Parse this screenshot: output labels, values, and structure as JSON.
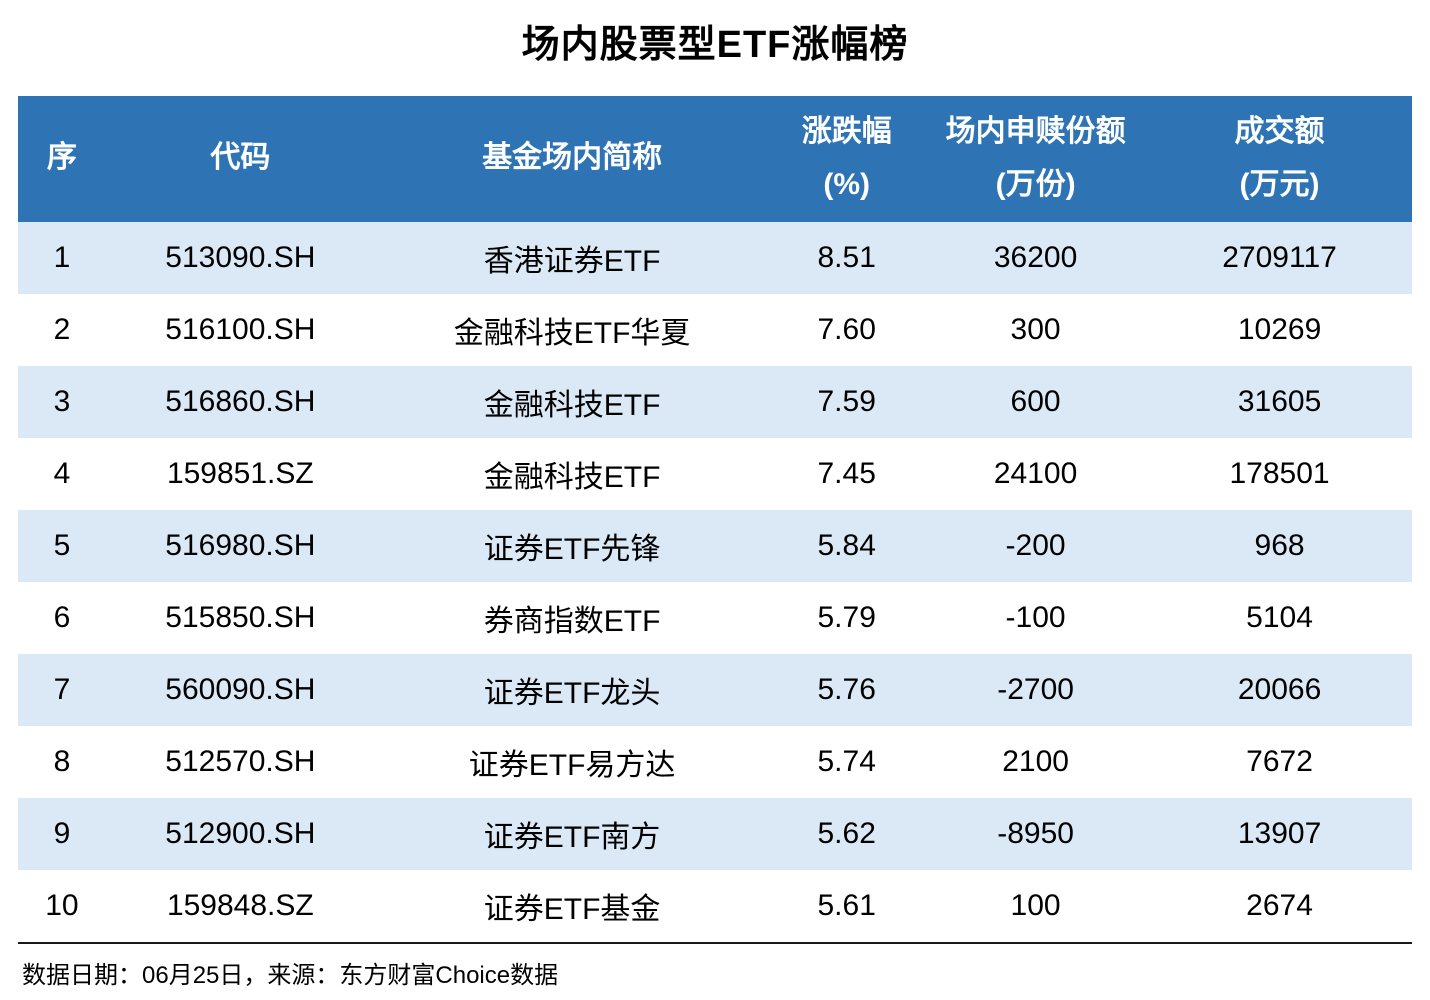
{
  "title": "场内股票型ETF涨幅榜",
  "colors": {
    "header_bg": "#2e74b5",
    "header_text": "#ffffff",
    "row_alt_bg": "#dbe9f7",
    "row_text": "#000000",
    "bottom_bar": "#2e74b5",
    "divider": "#1a1a1a"
  },
  "chart_data": {
    "type": "table",
    "title": "场内股票型ETF涨幅榜",
    "columns": [
      {
        "label": "序",
        "lines": [
          "序"
        ]
      },
      {
        "label": "代码",
        "lines": [
          "代码"
        ]
      },
      {
        "label": "基金场内简称",
        "lines": [
          "基金场内简称"
        ]
      },
      {
        "label": "涨跌幅(%)",
        "lines": [
          "涨跌幅",
          "(%)"
        ]
      },
      {
        "label": "场内申赎份额(万份)",
        "lines": [
          "场内申赎份额",
          "(万份)"
        ]
      },
      {
        "label": "成交额(万元)",
        "lines": [
          "成交额",
          "(万元)"
        ]
      }
    ],
    "rows": [
      [
        "1",
        "513090.SH",
        "香港证券ETF",
        "8.51",
        "36200",
        "2709117"
      ],
      [
        "2",
        "516100.SH",
        "金融科技ETF华夏",
        "7.60",
        "300",
        "10269"
      ],
      [
        "3",
        "516860.SH",
        "金融科技ETF",
        "7.59",
        "600",
        "31605"
      ],
      [
        "4",
        "159851.SZ",
        "金融科技ETF",
        "7.45",
        "24100",
        "178501"
      ],
      [
        "5",
        "516980.SH",
        "证券ETF先锋",
        "5.84",
        "-200",
        "968"
      ],
      [
        "6",
        "515850.SH",
        "券商指数ETF",
        "5.79",
        "-100",
        "5104"
      ],
      [
        "7",
        "560090.SH",
        "证券ETF龙头",
        "5.76",
        "-2700",
        "20066"
      ],
      [
        "8",
        "512570.SH",
        "证券ETF易方达",
        "5.74",
        "2100",
        "7672"
      ],
      [
        "9",
        "512900.SH",
        "证券ETF南方",
        "5.62",
        "-8950",
        "13907"
      ],
      [
        "10",
        "159848.SZ",
        "证券ETF基金",
        "5.61",
        "100",
        "2674"
      ]
    ]
  },
  "footer": {
    "text": "数据日期：06月25日，来源：东方财富Choice数据"
  }
}
